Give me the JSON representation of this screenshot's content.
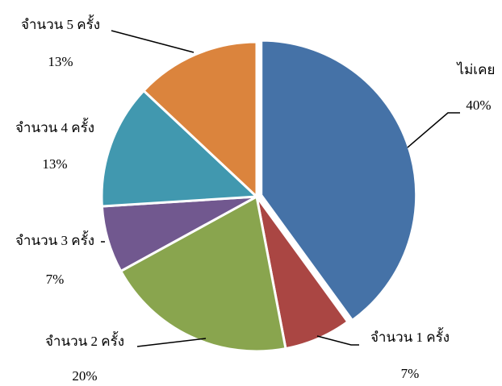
{
  "chart_data": {
    "type": "pie",
    "categories": [
      "ไม่เคย",
      "จำนวน 1 ครั้ง",
      "จำนวน 2 ครั้ง",
      "จำนวน 3 ครั้ง",
      "จำนวน 4 ครั้ง",
      "จำนวน 5 ครั้ง"
    ],
    "values": [
      40,
      7,
      20,
      7,
      13,
      13
    ],
    "value_labels": [
      "40%",
      "7%",
      "20%",
      "7%",
      "13%",
      "13%"
    ],
    "colors": [
      "#4572a7",
      "#aa4643",
      "#89a54e",
      "#71588f",
      "#4198af",
      "#db843d"
    ]
  }
}
